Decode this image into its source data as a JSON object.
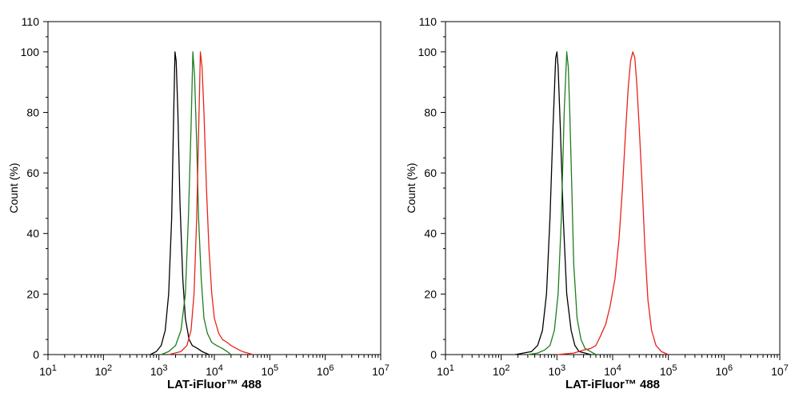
{
  "chart_data": [
    {
      "type": "line",
      "xscale": "log",
      "xlim": [
        10,
        10000000
      ],
      "ylim": [
        0,
        110
      ],
      "xlabel": "LAT-iFluor™ 488",
      "ylabel": "Count (%)",
      "xtick_values": [
        10,
        100,
        1000,
        10000,
        100000,
        1000000,
        10000000
      ],
      "xtick_labels": [
        [
          "10",
          "1"
        ],
        [
          "10",
          "2"
        ],
        [
          "10",
          "3"
        ],
        [
          "10",
          "4"
        ],
        [
          "10",
          "5"
        ],
        [
          "10",
          "6"
        ],
        [
          "10",
          "7"
        ]
      ],
      "yticks": [
        0,
        20,
        40,
        60,
        80,
        100,
        110
      ],
      "grid": false,
      "series": [
        {
          "color": "#000000",
          "x": [
            700,
            900,
            1100,
            1300,
            1500,
            1700,
            1850,
            1950,
            2050,
            2200,
            2400,
            2700,
            3000,
            3500,
            4000,
            5000,
            6000,
            8000
          ],
          "y": [
            0,
            1,
            3,
            8,
            20,
            45,
            80,
            100,
            97,
            80,
            50,
            25,
            12,
            5,
            3,
            2,
            1,
            0
          ]
        },
        {
          "color": "#1e7d1e",
          "x": [
            1100,
            1500,
            2000,
            2500,
            3000,
            3400,
            3800,
            4100,
            4400,
            4800,
            5200,
            5800,
            6500,
            7500,
            9000,
            11000,
            14000,
            17000,
            20000
          ],
          "y": [
            0,
            1,
            3,
            8,
            20,
            45,
            75,
            100,
            92,
            70,
            45,
            25,
            12,
            7,
            4,
            3,
            2,
            1,
            0
          ]
        },
        {
          "color": "#e8231c",
          "x": [
            1500,
            2500,
            3200,
            3800,
            4300,
            4800,
            5300,
            5600,
            6000,
            6500,
            7200,
            8000,
            9000,
            10000,
            12000,
            14000,
            17000,
            20000,
            25000,
            32000,
            40000,
            50000
          ],
          "y": [
            0,
            1,
            3,
            8,
            20,
            45,
            80,
            100,
            95,
            80,
            55,
            35,
            20,
            12,
            7,
            5,
            4,
            3,
            2,
            1,
            0.5,
            0
          ]
        }
      ]
    },
    {
      "type": "line",
      "xscale": "log",
      "xlim": [
        10,
        10000000
      ],
      "ylim": [
        0,
        110
      ],
      "xlabel": "LAT-iFluor™ 488",
      "ylabel": "Count (%)",
      "xtick_values": [
        10,
        100,
        1000,
        10000,
        100000,
        1000000,
        10000000
      ],
      "xtick_labels": [
        [
          "10",
          "1"
        ],
        [
          "10",
          "2"
        ],
        [
          "10",
          "3"
        ],
        [
          "10",
          "4"
        ],
        [
          "10",
          "5"
        ],
        [
          "10",
          "6"
        ],
        [
          "10",
          "7"
        ]
      ],
      "yticks": [
        0,
        20,
        40,
        60,
        80,
        100,
        110
      ],
      "grid": false,
      "series": [
        {
          "color": "#000000",
          "x": [
            180,
            250,
            350,
            450,
            550,
            650,
            750,
            850,
            950,
            1000,
            1050,
            1150,
            1300,
            1500,
            1800,
            2100,
            2500,
            3200,
            4000
          ],
          "y": [
            0,
            0.5,
            1,
            3,
            8,
            20,
            45,
            75,
            98,
            100,
            95,
            75,
            45,
            20,
            8,
            3,
            1,
            0.5,
            0
          ]
        },
        {
          "color": "#1e7d1e",
          "x": [
            300,
            450,
            600,
            750,
            900,
            1050,
            1200,
            1350,
            1500,
            1600,
            1700,
            1850,
            2000,
            2300,
            2700,
            3200,
            4000,
            5000
          ],
          "y": [
            0,
            0.5,
            1.5,
            3,
            8,
            20,
            45,
            80,
            100,
            95,
            80,
            55,
            30,
            12,
            5,
            2,
            1,
            0
          ]
        },
        {
          "color": "#e8231c",
          "x": [
            1000,
            2000,
            3000,
            4000,
            5000,
            6000,
            7500,
            9000,
            11000,
            13000,
            15000,
            17000,
            19000,
            21000,
            23000,
            25000,
            27000,
            30000,
            34000,
            38000,
            43000,
            50000,
            60000,
            75000,
            100000
          ],
          "y": [
            0,
            0.5,
            1.5,
            2,
            3,
            6,
            10,
            16,
            25,
            38,
            55,
            73,
            88,
            97,
            100,
            98,
            90,
            75,
            55,
            35,
            18,
            8,
            3,
            1,
            0
          ]
        }
      ]
    }
  ]
}
